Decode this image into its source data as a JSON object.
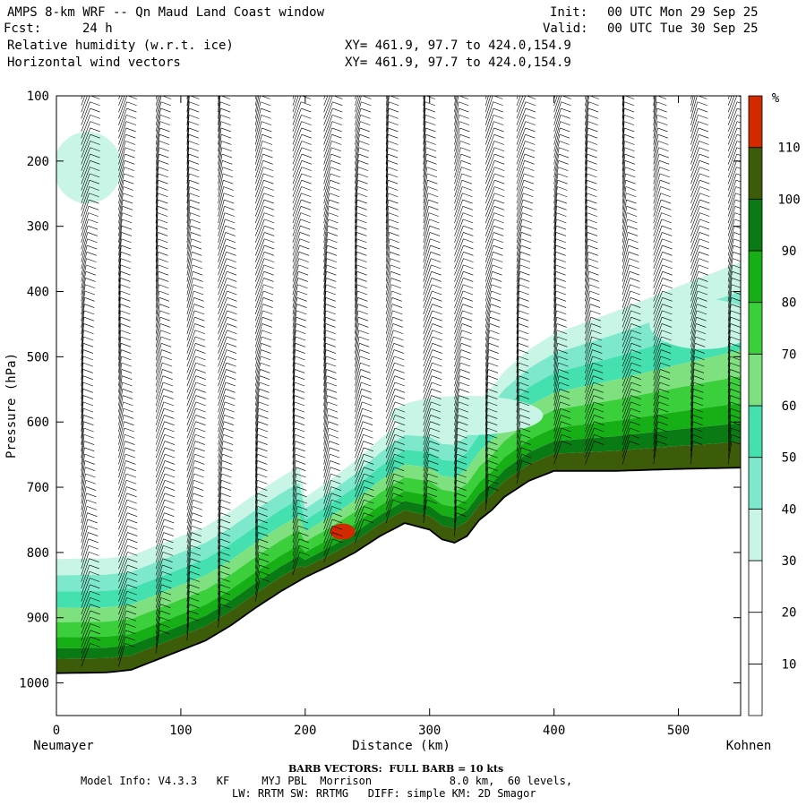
{
  "header": {
    "title": "AMPS 8-km WRF -- Qn Maud Land Coast window",
    "fcst_label": "Fcst:",
    "fcst_value": "24 h",
    "init_label": "Init:",
    "init_value": "00 UTC Mon 29 Sep 25",
    "valid_label": "Valid:",
    "valid_value": "00 UTC Tue 30 Sep 25",
    "field1": "Relative humidity (w.r.t. ice)",
    "field2": "Horizontal wind vectors",
    "xy1": "XY= 461.9, 97.7 to 424.0,154.9",
    "xy2": "XY= 461.9, 97.7 to 424.0,154.9"
  },
  "chart_data": {
    "type": "cross-section",
    "title": "Relative humidity (w.r.t. ice) and horizontal wind vectors",
    "xlabel": "Distance (km)",
    "ylabel": "Pressure (hPa)",
    "xlim": [
      0,
      550
    ],
    "ylim": [
      1050,
      100
    ],
    "x_ticks": [
      0,
      100,
      200,
      300,
      400,
      500
    ],
    "y_ticks": [
      100,
      200,
      300,
      400,
      500,
      600,
      700,
      800,
      900,
      1000
    ],
    "left_endpoint": "Neumayer",
    "right_endpoint": "Kohnen",
    "terrain_surface_pressure": {
      "distance_km": [
        0,
        40,
        60,
        80,
        100,
        120,
        140,
        160,
        180,
        200,
        220,
        240,
        260,
        280,
        300,
        310,
        320,
        330,
        340,
        350,
        360,
        380,
        400,
        450,
        500,
        550
      ],
      "pressure_hpa": [
        985,
        984,
        980,
        965,
        950,
        935,
        912,
        885,
        860,
        838,
        820,
        800,
        775,
        755,
        765,
        780,
        785,
        775,
        750,
        735,
        715,
        690,
        675,
        675,
        672,
        670
      ]
    },
    "colorbar": {
      "unit": "%",
      "labels": [
        10,
        20,
        30,
        40,
        50,
        60,
        70,
        80,
        90,
        100,
        110
      ],
      "colors": [
        "#ffffff",
        "#ffffff",
        "#ffffff",
        "#c8f5e6",
        "#7ee8cc",
        "#45e0b0",
        "#7ee07e",
        "#3ccf3c",
        "#16b016",
        "#0a7a14",
        "#3d5c0a",
        "#d22a00"
      ]
    },
    "wind_barb_columns_km": [
      20,
      50,
      80,
      105,
      130,
      160,
      190,
      215,
      240,
      265,
      295,
      320,
      345,
      370,
      400,
      425,
      455,
      480,
      510,
      540
    ]
  },
  "footer": {
    "barb_note": "BARB VECTORS:  FULL BARB = 10 kts",
    "model_line1": "Model Info: V4.3.3   KF     MYJ PBL  Morrison            8.0 km,  60 levels,",
    "model_line2": "LW: RRTM SW: RRTMG   DIFF: simple KM: 2D Smagor"
  }
}
